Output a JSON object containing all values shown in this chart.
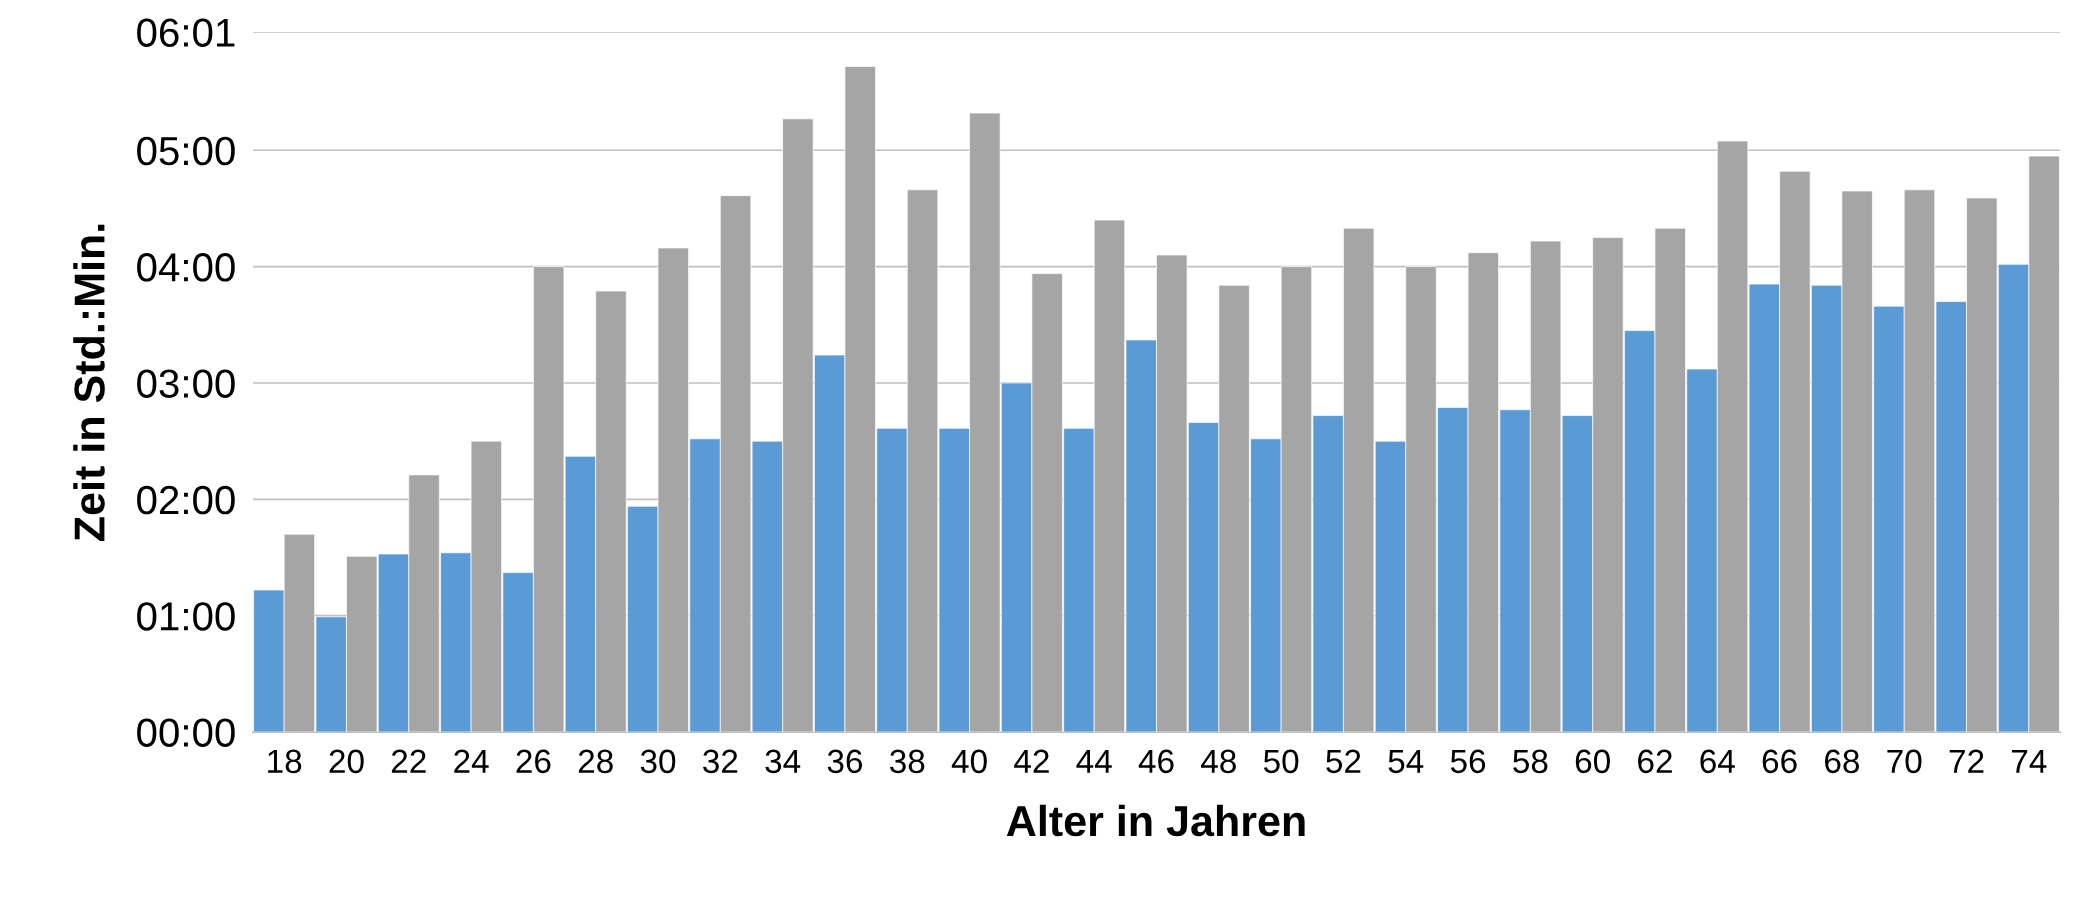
{
  "chart_data": {
    "type": "bar",
    "xlabel": "Alter in Jahren",
    "ylabel": "Zeit in Std.:Min.",
    "categories": [
      "18",
      "20",
      "22",
      "24",
      "26",
      "28",
      "30",
      "32",
      "34",
      "36",
      "38",
      "40",
      "42",
      "44",
      "46",
      "48",
      "50",
      "52",
      "54",
      "56",
      "58",
      "60",
      "62",
      "64",
      "66",
      "68",
      "70",
      "72",
      "74"
    ],
    "series": [
      {
        "color": "#5b9bd5",
        "values": [
          1.22,
          0.99,
          1.53,
          1.54,
          1.37,
          2.37,
          1.94,
          2.52,
          2.5,
          3.24,
          2.61,
          2.61,
          3.0,
          2.61,
          3.37,
          2.66,
          2.52,
          2.72,
          2.5,
          2.79,
          2.77,
          2.72,
          3.45,
          3.12,
          3.85,
          3.84,
          3.66,
          3.7,
          4.02
        ]
      },
      {
        "color": "#a5a5a5",
        "values": [
          1.7,
          1.51,
          2.21,
          2.5,
          4.0,
          3.79,
          4.16,
          4.61,
          5.27,
          5.72,
          4.66,
          5.32,
          3.94,
          4.4,
          4.1,
          3.84,
          4.0,
          4.33,
          4.0,
          4.12,
          4.22,
          4.25,
          4.33,
          5.08,
          4.82,
          4.65,
          4.66,
          4.59,
          4.95
        ]
      }
    ],
    "ylim": [
      0,
      6.0167
    ],
    "yticks": [
      {
        "value": 0,
        "label": "00:00"
      },
      {
        "value": 1,
        "label": "01:00"
      },
      {
        "value": 2,
        "label": "02:00"
      },
      {
        "value": 3,
        "label": "03:00"
      },
      {
        "value": 4,
        "label": "04:00"
      },
      {
        "value": 5,
        "label": "05:00"
      },
      {
        "value": 6.0167,
        "label": "06:01"
      }
    ],
    "grid": "y"
  }
}
